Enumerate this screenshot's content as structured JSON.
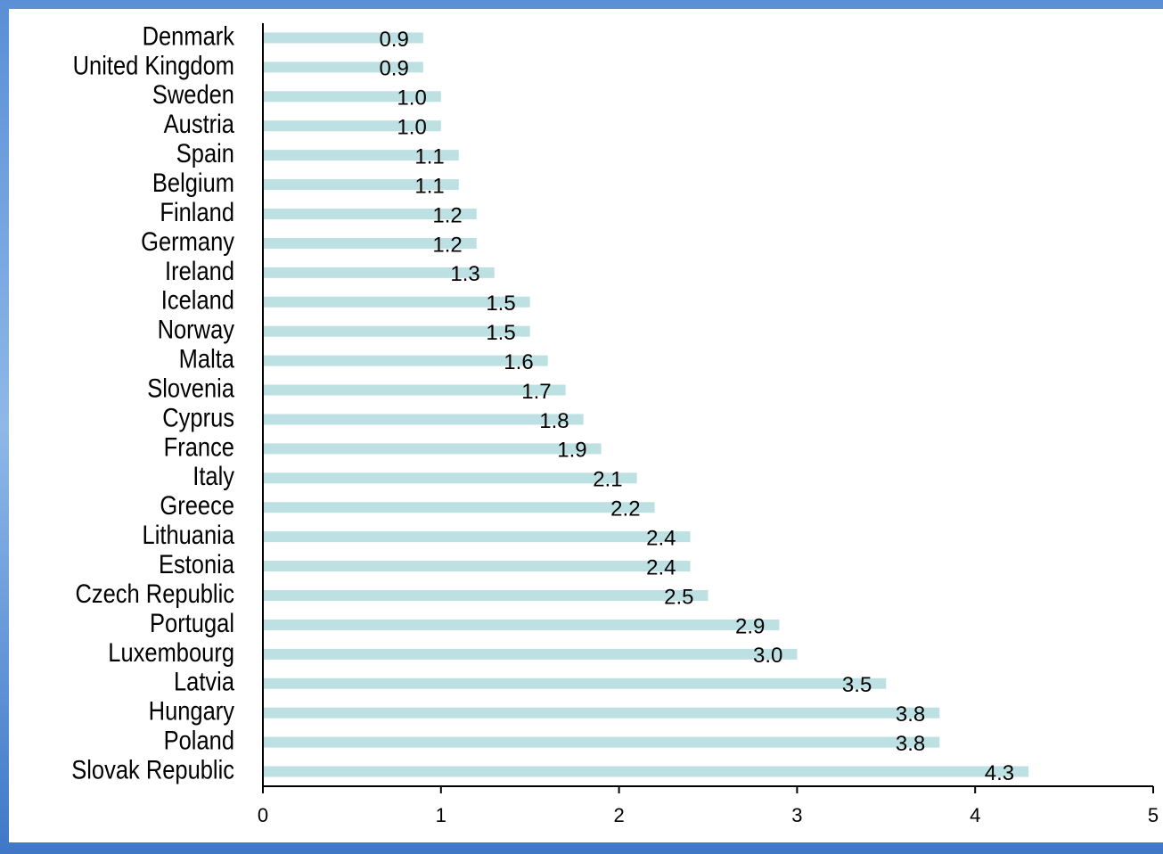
{
  "chart_data": {
    "type": "bar",
    "orientation": "horizontal",
    "categories": [
      "Denmark",
      "United Kingdom",
      "Sweden",
      "Austria",
      "Spain",
      "Belgium",
      "Finland",
      "Germany",
      "Ireland",
      "Iceland",
      "Norway",
      "Malta",
      "Slovenia",
      "Cyprus",
      "France",
      "Italy",
      "Greece",
      "Lithuania",
      "Estonia",
      "Czech Republic",
      "Portugal",
      "Luxembourg",
      "Latvia",
      "Hungary",
      "Poland",
      "Slovak Republic"
    ],
    "values": [
      0.9,
      0.9,
      1.0,
      1.0,
      1.1,
      1.1,
      1.2,
      1.2,
      1.3,
      1.5,
      1.5,
      1.6,
      1.7,
      1.8,
      1.9,
      2.1,
      2.2,
      2.4,
      2.4,
      2.5,
      2.9,
      3.0,
      3.5,
      3.8,
      3.8,
      4.3
    ],
    "value_labels": [
      "0.9",
      "0.9",
      "1.0",
      "1.0",
      "1.1",
      "1.1",
      "1.2",
      "1.2",
      "1.3",
      "1.5",
      "1.5",
      "1.6",
      "1.7",
      "1.8",
      "1.9",
      "2.1",
      "2.2",
      "2.4",
      "2.4",
      "2.5",
      "2.9",
      "3.0",
      "3.5",
      "3.8",
      "3.8",
      "4.3"
    ],
    "color": "#bde0e3",
    "xlim": [
      0,
      5
    ],
    "xticks": [
      0,
      1,
      2,
      3,
      4,
      5
    ]
  }
}
